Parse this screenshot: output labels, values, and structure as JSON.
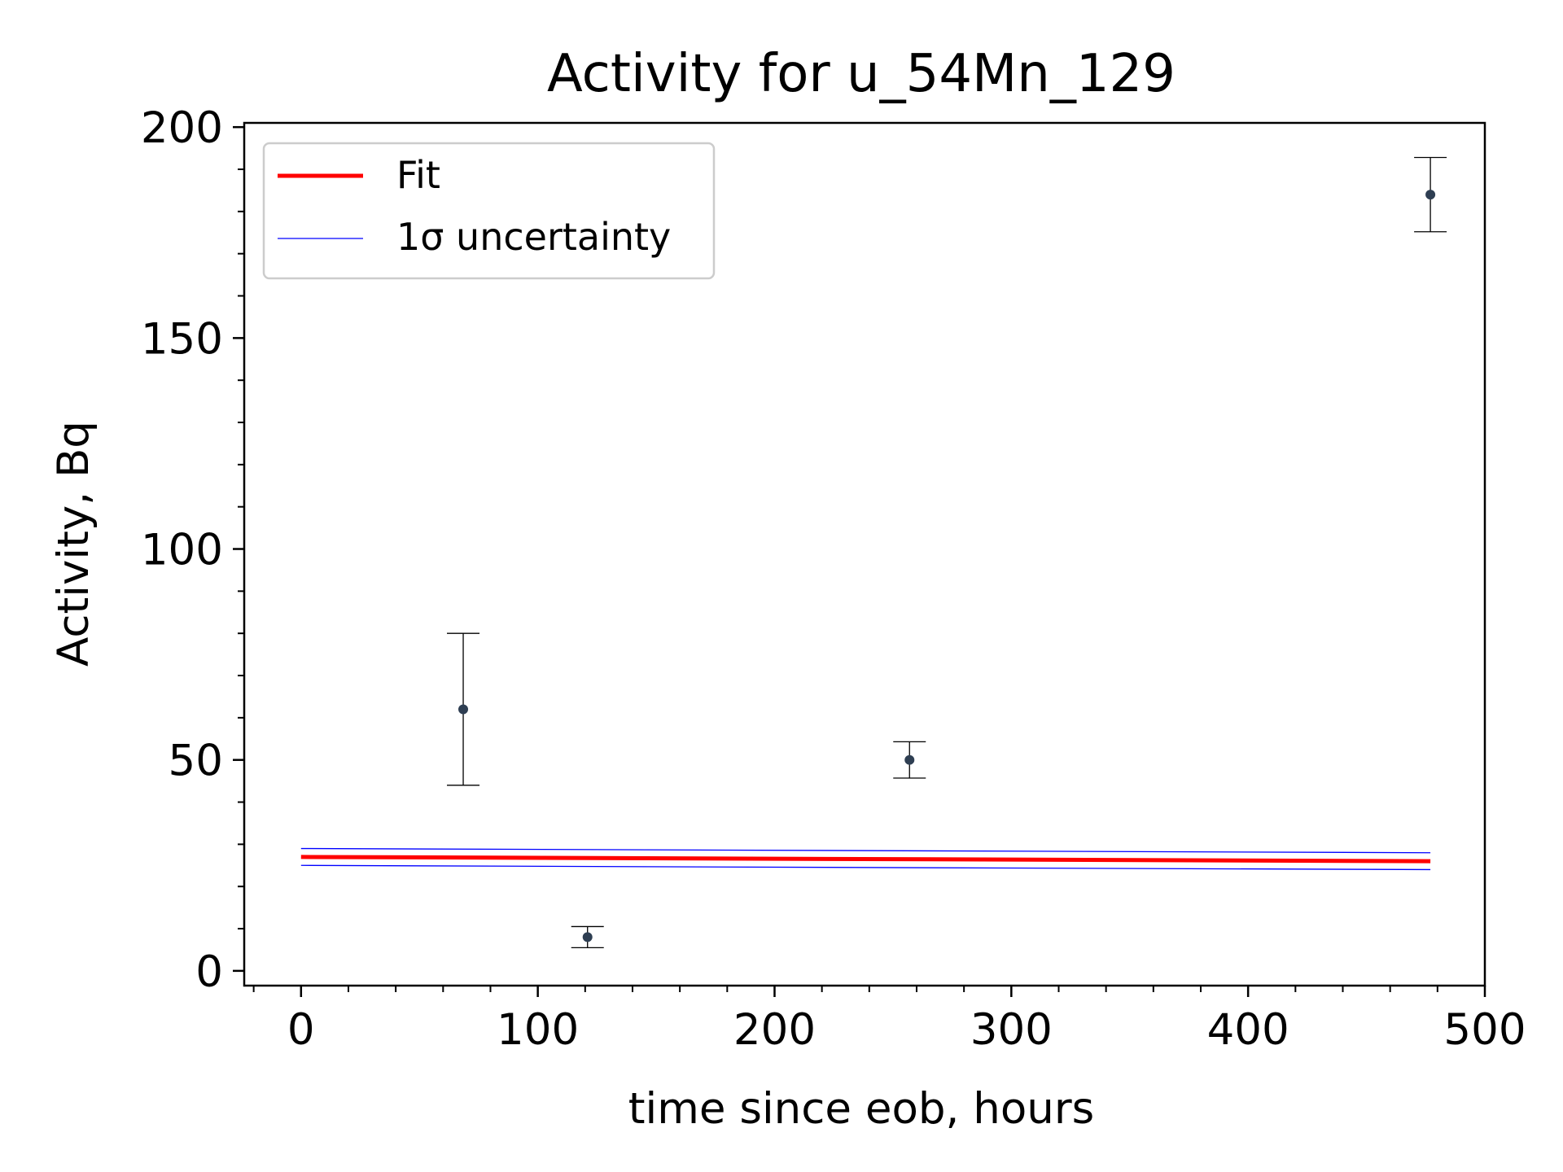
{
  "chart_data": {
    "type": "scatter",
    "title": "Activity for u_54Mn_129",
    "xlabel": "time since eob, hours",
    "ylabel": "Activity, Bq",
    "xlim": [
      -24,
      500
    ],
    "ylim": [
      -3.5,
      201
    ],
    "xticks": [
      0,
      100,
      200,
      300,
      400,
      500
    ],
    "yticks": [
      0,
      50,
      100,
      150,
      200
    ],
    "grid": false,
    "legend_position": "top-left",
    "legend": [
      {
        "label": "Fit",
        "color": "#ff0000"
      },
      {
        "label": "1σ uncertainty",
        "color": "#0000ff"
      }
    ],
    "series": [
      {
        "name": "Fit",
        "type": "line",
        "color": "#ff0000",
        "x": [
          0,
          477
        ],
        "y": [
          27.0,
          26.0
        ]
      },
      {
        "name": "1σ uncertainty",
        "type": "line",
        "color": "#0000ff",
        "x": [
          0,
          477
        ],
        "y": [
          29.0,
          28.0
        ]
      },
      {
        "name": "1σ uncertainty",
        "type": "line",
        "color": "#0000ff",
        "x": [
          0,
          477
        ],
        "y": [
          25.0,
          24.0
        ]
      },
      {
        "type": "errorbar",
        "color": "#2e3e52",
        "x": [
          68.5,
          121,
          257,
          477
        ],
        "y": [
          62,
          8,
          50,
          184
        ],
        "yerr": [
          18,
          2.5,
          4.3,
          8.8
        ]
      }
    ]
  }
}
